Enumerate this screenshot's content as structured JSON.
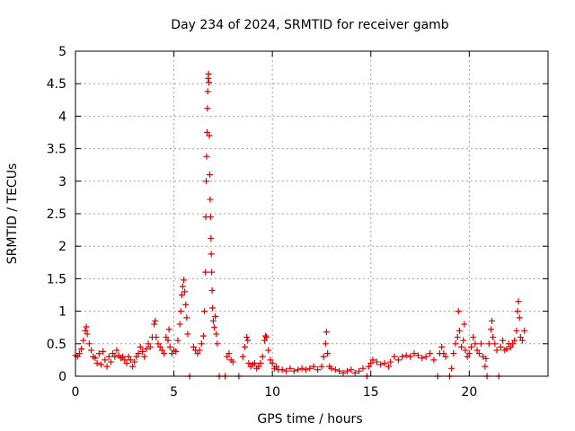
{
  "chart_data": {
    "type": "scatter",
    "title": "Day 234 of 2024, SRMTID for receiver gamb",
    "xlabel": "GPS time / hours",
    "ylabel": "SRMTID / TECUs",
    "xlim": [
      0,
      24
    ],
    "ylim": [
      0,
      5
    ],
    "xticks": [
      0,
      5,
      10,
      15,
      20
    ],
    "xtick_labels": [
      "0",
      "5",
      "10",
      "15",
      "20"
    ],
    "yticks": [
      0,
      0.5,
      1,
      1.5,
      2,
      2.5,
      3,
      3.5,
      4,
      4.5,
      5
    ],
    "ytick_labels": [
      "0",
      "0.5",
      "1",
      "1.5",
      "2",
      "2.5",
      "3",
      "3.5",
      "4",
      "4.5",
      "5"
    ],
    "grid": true,
    "marker": "+",
    "color": "#e00000",
    "series": [
      {
        "name": "SRMTID",
        "points": [
          [
            0.0,
            0.32
          ],
          [
            0.1,
            0.3
          ],
          [
            0.2,
            0.35
          ],
          [
            0.3,
            0.42
          ],
          [
            0.4,
            0.55
          ],
          [
            0.5,
            0.7
          ],
          [
            0.55,
            0.76
          ],
          [
            0.6,
            0.65
          ],
          [
            0.7,
            0.5
          ],
          [
            0.8,
            0.4
          ],
          [
            0.9,
            0.3
          ],
          [
            1.0,
            0.28
          ],
          [
            1.1,
            0.2
          ],
          [
            1.2,
            0.35
          ],
          [
            1.3,
            0.18
          ],
          [
            1.4,
            0.38
          ],
          [
            1.5,
            0.25
          ],
          [
            1.6,
            0.15
          ],
          [
            1.7,
            0.3
          ],
          [
            1.8,
            0.22
          ],
          [
            1.9,
            0.35
          ],
          [
            2.0,
            0.3
          ],
          [
            2.1,
            0.4
          ],
          [
            2.2,
            0.32
          ],
          [
            2.3,
            0.28
          ],
          [
            2.4,
            0.3
          ],
          [
            2.5,
            0.25
          ],
          [
            2.6,
            0.2
          ],
          [
            2.7,
            0.3
          ],
          [
            2.8,
            0.25
          ],
          [
            2.9,
            0.15
          ],
          [
            3.0,
            0.22
          ],
          [
            3.1,
            0.3
          ],
          [
            3.2,
            0.35
          ],
          [
            3.3,
            0.45
          ],
          [
            3.4,
            0.38
          ],
          [
            3.5,
            0.3
          ],
          [
            3.6,
            0.42
          ],
          [
            3.7,
            0.5
          ],
          [
            3.8,
            0.45
          ],
          [
            3.9,
            0.6
          ],
          [
            4.0,
            0.8
          ],
          [
            4.05,
            0.85
          ],
          [
            4.1,
            0.6
          ],
          [
            4.2,
            0.5
          ],
          [
            4.3,
            0.45
          ],
          [
            4.4,
            0.4
          ],
          [
            4.5,
            0.35
          ],
          [
            4.6,
            0.6
          ],
          [
            4.7,
            0.55
          ],
          [
            4.75,
            0.72
          ],
          [
            4.8,
            0.45
          ],
          [
            4.9,
            0.35
          ],
          [
            5.0,
            0.4
          ],
          [
            5.1,
            0.38
          ],
          [
            5.2,
            0.55
          ],
          [
            5.3,
            0.8
          ],
          [
            5.35,
            1.0
          ],
          [
            5.4,
            1.25
          ],
          [
            5.45,
            1.38
          ],
          [
            5.5,
            1.48
          ],
          [
            5.55,
            1.3
          ],
          [
            5.6,
            1.1
          ],
          [
            5.65,
            0.9
          ],
          [
            5.7,
            0.65
          ],
          [
            5.8,
            0.0
          ],
          [
            6.0,
            0.45
          ],
          [
            6.1,
            0.4
          ],
          [
            6.2,
            0.35
          ],
          [
            6.3,
            0.4
          ],
          [
            6.4,
            0.5
          ],
          [
            6.5,
            0.62
          ],
          [
            6.55,
            1.0
          ],
          [
            6.6,
            1.6
          ],
          [
            6.62,
            2.45
          ],
          [
            6.64,
            3.0
          ],
          [
            6.66,
            3.38
          ],
          [
            6.68,
            3.75
          ],
          [
            6.7,
            4.12
          ],
          [
            6.72,
            4.38
          ],
          [
            6.74,
            4.58
          ],
          [
            6.76,
            4.65
          ],
          [
            6.78,
            4.52
          ],
          [
            6.8,
            3.7
          ],
          [
            6.82,
            3.1
          ],
          [
            6.84,
            2.72
          ],
          [
            6.86,
            2.45
          ],
          [
            6.88,
            2.12
          ],
          [
            6.9,
            1.88
          ],
          [
            6.92,
            1.6
          ],
          [
            6.94,
            1.32
          ],
          [
            6.96,
            1.05
          ],
          [
            7.0,
            0.85
          ],
          [
            7.05,
            0.75
          ],
          [
            7.1,
            0.92
          ],
          [
            7.15,
            0.65
          ],
          [
            7.2,
            0.5
          ],
          [
            7.3,
            0.0
          ],
          [
            7.6,
            0.0
          ],
          [
            7.7,
            0.3
          ],
          [
            7.8,
            0.35
          ],
          [
            7.9,
            0.25
          ],
          [
            8.0,
            0.22
          ],
          [
            8.3,
            0.0
          ],
          [
            8.5,
            0.3
          ],
          [
            8.6,
            0.45
          ],
          [
            8.7,
            0.6
          ],
          [
            8.75,
            0.55
          ],
          [
            8.8,
            0.2
          ],
          [
            8.9,
            0.15
          ],
          [
            9.0,
            0.18
          ],
          [
            9.1,
            0.2
          ],
          [
            9.2,
            0.12
          ],
          [
            9.3,
            0.15
          ],
          [
            9.4,
            0.2
          ],
          [
            9.5,
            0.3
          ],
          [
            9.6,
            0.55
          ],
          [
            9.65,
            0.62
          ],
          [
            9.7,
            0.6
          ],
          [
            9.8,
            0.4
          ],
          [
            9.9,
            0.25
          ],
          [
            10.0,
            0.2
          ],
          [
            10.1,
            0.12
          ],
          [
            10.2,
            0.15
          ],
          [
            10.3,
            0.1
          ],
          [
            10.5,
            0.1
          ],
          [
            10.7,
            0.08
          ],
          [
            10.9,
            0.12
          ],
          [
            11.1,
            0.08
          ],
          [
            11.3,
            0.1
          ],
          [
            11.5,
            0.12
          ],
          [
            11.7,
            0.1
          ],
          [
            11.9,
            0.12
          ],
          [
            12.1,
            0.15
          ],
          [
            12.3,
            0.1
          ],
          [
            12.5,
            0.15
          ],
          [
            12.6,
            0.3
          ],
          [
            12.7,
            0.5
          ],
          [
            12.75,
            0.68
          ],
          [
            12.8,
            0.35
          ],
          [
            12.9,
            0.15
          ],
          [
            13.0,
            0.12
          ],
          [
            13.2,
            0.1
          ],
          [
            13.4,
            0.08
          ],
          [
            13.6,
            0.05
          ],
          [
            13.8,
            0.08
          ],
          [
            14.0,
            0.1
          ],
          [
            14.2,
            0.05
          ],
          [
            14.4,
            0.08
          ],
          [
            14.6,
            0.12
          ],
          [
            14.8,
            0.0
          ],
          [
            14.9,
            0.15
          ],
          [
            15.0,
            0.2
          ],
          [
            15.1,
            0.25
          ],
          [
            15.3,
            0.22
          ],
          [
            15.5,
            0.18
          ],
          [
            15.7,
            0.2
          ],
          [
            15.9,
            0.15
          ],
          [
            16.0,
            0.22
          ],
          [
            16.2,
            0.3
          ],
          [
            16.4,
            0.25
          ],
          [
            16.6,
            0.3
          ],
          [
            16.8,
            0.32
          ],
          [
            17.0,
            0.3
          ],
          [
            17.2,
            0.35
          ],
          [
            17.4,
            0.32
          ],
          [
            17.6,
            0.28
          ],
          [
            17.8,
            0.3
          ],
          [
            18.0,
            0.35
          ],
          [
            18.2,
            0.25
          ],
          [
            18.4,
            0.0
          ],
          [
            18.5,
            0.35
          ],
          [
            18.6,
            0.45
          ],
          [
            18.7,
            0.35
          ],
          [
            18.8,
            0.3
          ],
          [
            19.0,
            0.0
          ],
          [
            19.1,
            0.12
          ],
          [
            19.2,
            0.35
          ],
          [
            19.3,
            0.5
          ],
          [
            19.4,
            0.6
          ],
          [
            19.45,
            1.0
          ],
          [
            19.5,
            0.7
          ],
          [
            19.6,
            0.45
          ],
          [
            19.7,
            0.55
          ],
          [
            19.75,
            0.8
          ],
          [
            19.8,
            0.4
          ],
          [
            19.9,
            0.3
          ],
          [
            20.0,
            0.35
          ],
          [
            20.1,
            0.45
          ],
          [
            20.2,
            0.6
          ],
          [
            20.3,
            0.5
          ],
          [
            20.4,
            0.4
          ],
          [
            20.5,
            0.35
          ],
          [
            20.6,
            0.5
          ],
          [
            20.7,
            0.3
          ],
          [
            20.8,
            0.15
          ],
          [
            20.85,
            0.27
          ],
          [
            20.9,
            0.0
          ],
          [
            21.0,
            0.5
          ],
          [
            21.1,
            0.72
          ],
          [
            21.15,
            0.85
          ],
          [
            21.2,
            0.6
          ],
          [
            21.3,
            0.5
          ],
          [
            21.4,
            0.4
          ],
          [
            21.5,
            0.0
          ],
          [
            21.6,
            0.45
          ],
          [
            21.7,
            0.55
          ],
          [
            21.8,
            0.4
          ],
          [
            21.9,
            0.42
          ],
          [
            22.0,
            0.5
          ],
          [
            22.1,
            0.45
          ],
          [
            22.2,
            0.5
          ],
          [
            22.3,
            0.55
          ],
          [
            22.4,
            0.7
          ],
          [
            22.45,
            1.0
          ],
          [
            22.5,
            1.15
          ],
          [
            22.55,
            0.9
          ],
          [
            22.6,
            0.6
          ],
          [
            22.7,
            0.55
          ],
          [
            22.8,
            0.7
          ]
        ]
      }
    ]
  }
}
